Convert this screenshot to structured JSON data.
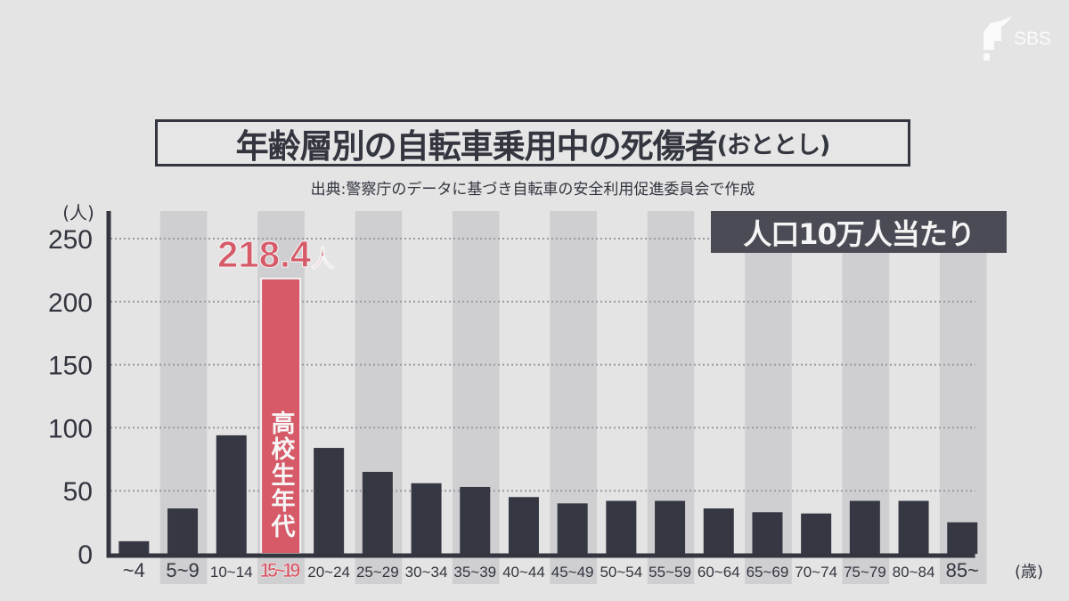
{
  "logo": {
    "text": "SBS"
  },
  "title": {
    "main": "年齢層別の自転車乗用中の死傷者",
    "sub": "(おととし)"
  },
  "source": "出典:警察庁のデータに基づき自転車の安全利用促進委員会で作成",
  "badge": "人口10万人当たり",
  "callout": {
    "value": "218.4",
    "unit": "人"
  },
  "highlight_label": [
    "高",
    "校",
    "生",
    "年",
    "代"
  ],
  "colors": {
    "bar": "#353743",
    "highlight": "#d65a68",
    "band": "#cfcfd2",
    "background": "#e4e4e4",
    "axis": "#33353f"
  },
  "chart_data": {
    "type": "bar",
    "title": "年齢層別の自転車乗用中の死傷者(おととし)",
    "ylabel": "(人)",
    "xlabel": "(歳)",
    "ylim": [
      0,
      250
    ],
    "yticks": [
      "0",
      "50",
      "100",
      "150",
      "200",
      "250"
    ],
    "ytick_values": [
      0,
      50,
      100,
      150,
      200,
      250
    ],
    "grid": true,
    "categories": [
      "~4",
      "5~9",
      "10~14",
      "15~19",
      "20~24",
      "25~29",
      "30~34",
      "35~39",
      "40~44",
      "45~49",
      "50~54",
      "55~59",
      "60~64",
      "65~69",
      "70~74",
      "75~79",
      "80~84",
      "85~"
    ],
    "values": [
      10,
      36,
      94,
      218.4,
      84,
      65,
      56,
      53,
      45,
      40,
      42,
      42,
      36,
      33,
      32,
      42,
      42,
      25
    ],
    "highlight_index": 3
  }
}
